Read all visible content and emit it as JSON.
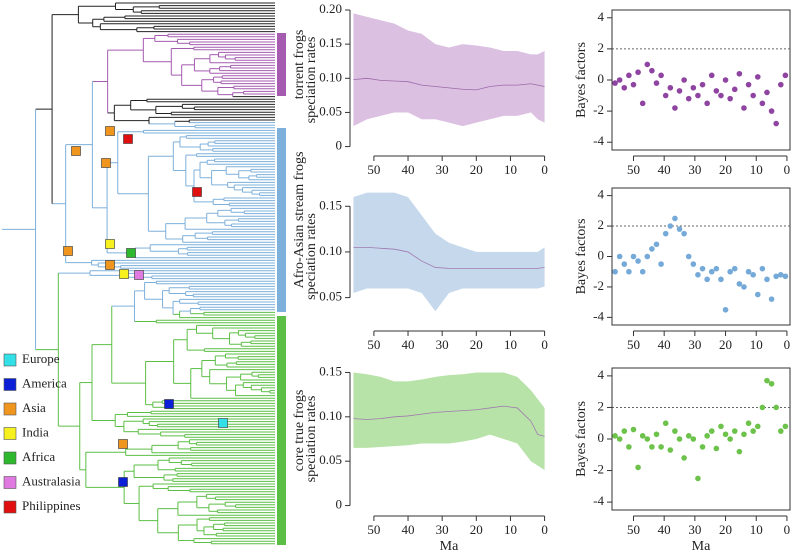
{
  "tree": {
    "clades": [
      {
        "label": "torrent frogs",
        "color": "#a45bb0"
      },
      {
        "label": "Afro-Asian stream frogs",
        "color": "#7eb0dc"
      },
      {
        "label": "core true frogs",
        "color": "#5cbf45"
      }
    ],
    "legend": [
      {
        "label": "Europe",
        "color": "#33e0e8"
      },
      {
        "label": "America",
        "color": "#0a1fd6"
      },
      {
        "label": "Asia",
        "color": "#f0951e"
      },
      {
        "label": "India",
        "color": "#f5f01e"
      },
      {
        "label": "Africa",
        "color": "#2db82d"
      },
      {
        "label": "Australasia",
        "color": "#e07ae0"
      },
      {
        "label": "Philippines",
        "color": "#e01010"
      }
    ]
  },
  "chart_data": [
    {
      "type": "band",
      "y_label": "speciation rates",
      "x": [
        56,
        52,
        48,
        44,
        40,
        36,
        32,
        28,
        24,
        20,
        16,
        12,
        8,
        4,
        2,
        0
      ],
      "upper": [
        0.195,
        0.19,
        0.185,
        0.18,
        0.17,
        0.165,
        0.15,
        0.145,
        0.15,
        0.148,
        0.145,
        0.14,
        0.14,
        0.135,
        0.135,
        0.14
      ],
      "lower": [
        0.03,
        0.04,
        0.045,
        0.05,
        0.05,
        0.04,
        0.04,
        0.035,
        0.03,
        0.035,
        0.04,
        0.045,
        0.045,
        0.05,
        0.04,
        0.035
      ],
      "values": [
        0.098,
        0.1,
        0.097,
        0.096,
        0.095,
        0.09,
        0.088,
        0.086,
        0.084,
        0.083,
        0.088,
        0.09,
        0.09,
        0.092,
        0.09,
        0.088
      ],
      "color": "#dcc0e2",
      "line_color": "#9b6aa8",
      "xlim": [
        57,
        -1
      ],
      "xticks": [
        50,
        40,
        30,
        20,
        10,
        0
      ],
      "ylim": [
        -0.005,
        0.2
      ],
      "yticks": [
        0,
        0.05,
        {
          "value": 0.1,
          "label": "0.10"
        },
        0.15,
        {
          "value": 0.2,
          "label": "0.20"
        }
      ]
    },
    {
      "type": "scatter",
      "y_label": "Bayes factors",
      "color": "#8e44a0",
      "threshold": 2,
      "xlim": [
        57,
        -1
      ],
      "xticks": [
        50,
        40,
        30,
        20,
        10,
        0
      ],
      "ylim": [
        -4.5,
        4.5
      ],
      "yticks": [
        -4,
        -2,
        0,
        2,
        4
      ],
      "x": [
        56,
        54.5,
        53,
        51.5,
        50,
        48.5,
        47,
        45.5,
        44,
        42.5,
        41,
        39.5,
        38,
        36.5,
        35,
        33.5,
        32,
        30.5,
        29,
        27.5,
        26,
        24.5,
        23,
        21.5,
        20,
        18.5,
        17,
        15.5,
        14,
        12.5,
        11,
        9.5,
        8,
        6.5,
        5,
        3.5,
        2,
        0.5
      ],
      "values": [
        -0.2,
        0,
        -0.5,
        0.3,
        -0.3,
        0.5,
        -1.5,
        1,
        0.6,
        -0.2,
        0.3,
        -1,
        -0.5,
        -1.8,
        -0.7,
        0,
        -1.2,
        -0.5,
        -1,
        -0.3,
        -1.5,
        0.3,
        -0.7,
        -1,
        0,
        -1.2,
        -0.6,
        0.4,
        -1.8,
        -0.3,
        -1,
        0.2,
        -1.5,
        -0.8,
        -2,
        -2.8,
        -0.3,
        0.3
      ]
    },
    {
      "type": "band",
      "y_label": "speciation rates",
      "x": [
        56,
        52,
        48,
        44,
        40,
        36,
        32,
        28,
        24,
        20,
        16,
        12,
        8,
        4,
        2,
        0
      ],
      "upper": [
        0.16,
        0.165,
        0.165,
        0.165,
        0.16,
        0.14,
        0.12,
        0.11,
        0.105,
        0.1,
        0.1,
        0.1,
        0.1,
        0.1,
        0.1,
        0.105
      ],
      "lower": [
        0.055,
        0.06,
        0.06,
        0.06,
        0.06,
        0.055,
        0.035,
        0.055,
        0.06,
        0.06,
        0.06,
        0.06,
        0.06,
        0.06,
        0.06,
        0.062
      ],
      "values": [
        0.105,
        0.105,
        0.104,
        0.103,
        0.1,
        0.09,
        0.083,
        0.082,
        0.082,
        0.082,
        0.082,
        0.082,
        0.082,
        0.082,
        0.082,
        0.083
      ],
      "color": "#c5d8ec",
      "line_color": "#a07ab0",
      "xlim": [
        57,
        -1
      ],
      "xticks": [
        50,
        40,
        30,
        20,
        10,
        0
      ],
      "ylim": [
        0.02,
        0.17
      ],
      "yticks": [
        0.05,
        {
          "value": 0.1,
          "label": "0.10"
        },
        0.15
      ]
    },
    {
      "type": "scatter",
      "y_label": "Bayes factors",
      "color": "#74a9d8",
      "threshold": 2,
      "xlim": [
        57,
        -1
      ],
      "xticks": [
        50,
        40,
        30,
        20,
        10,
        0
      ],
      "ylim": [
        -4.5,
        4.5
      ],
      "yticks": [
        -4,
        -2,
        0,
        2,
        4
      ],
      "x": [
        56,
        54.5,
        53,
        51.5,
        50,
        48.5,
        47,
        45.5,
        44,
        42.5,
        41,
        39.5,
        38,
        36.5,
        35,
        33.5,
        32,
        30.5,
        29,
        27.5,
        26,
        24.5,
        23,
        21.5,
        20,
        18.5,
        17,
        15.5,
        14,
        12.5,
        11,
        9.5,
        8,
        6.5,
        5,
        3.5,
        2,
        0.5
      ],
      "values": [
        -1,
        0,
        -0.5,
        -1,
        0,
        -0.3,
        -1,
        0,
        0.5,
        0.8,
        -0.5,
        1.5,
        2,
        2.5,
        1.8,
        1.5,
        0,
        -0.5,
        -1.2,
        -0.8,
        -1.5,
        -1,
        -0.8,
        -1.5,
        -3.5,
        -1,
        -0.8,
        -1.8,
        -2,
        -1,
        -1.2,
        -2.5,
        -0.8,
        -1.5,
        -2.8,
        -1.3,
        -1.2,
        -1.3
      ]
    },
    {
      "type": "band",
      "y_label": "speciation rates",
      "x_label": "Ma",
      "x": [
        56,
        52,
        48,
        44,
        40,
        36,
        32,
        28,
        24,
        20,
        16,
        12,
        8,
        4,
        2,
        0
      ],
      "upper": [
        0.15,
        0.148,
        0.145,
        0.14,
        0.14,
        0.142,
        0.145,
        0.147,
        0.148,
        0.15,
        0.15,
        0.15,
        0.145,
        0.13,
        0.12,
        0.11
      ],
      "lower": [
        0.065,
        0.065,
        0.066,
        0.067,
        0.068,
        0.07,
        0.07,
        0.07,
        0.072,
        0.075,
        0.08,
        0.075,
        0.07,
        0.05,
        0.045,
        0.04
      ],
      "values": [
        0.098,
        0.097,
        0.098,
        0.1,
        0.101,
        0.103,
        0.105,
        0.106,
        0.107,
        0.108,
        0.11,
        0.112,
        0.11,
        0.095,
        0.08,
        0.078
      ],
      "color": "#b8e3a8",
      "line_color": "#a07ab0",
      "xlim": [
        57,
        -1
      ],
      "xticks": [
        50,
        40,
        30,
        20,
        10,
        0
      ],
      "ylim": [
        -0.005,
        0.155
      ],
      "yticks": [
        0,
        0.05,
        {
          "value": 0.1,
          "label": "0.10"
        },
        0.15
      ]
    },
    {
      "type": "scatter",
      "y_label": "Bayes factors",
      "x_label": "Ma",
      "color": "#6cc24a",
      "threshold": 2,
      "xlim": [
        57,
        -1
      ],
      "xticks": [
        50,
        40,
        30,
        20,
        10,
        0
      ],
      "ylim": [
        -4.5,
        4.5
      ],
      "yticks": [
        -4,
        -2,
        0,
        2,
        4
      ],
      "x": [
        56,
        54.5,
        53,
        51.5,
        50,
        48.5,
        47,
        45.5,
        44,
        42.5,
        41,
        39.5,
        38,
        36.5,
        35,
        33.5,
        32,
        30.5,
        29,
        27.5,
        26,
        24.5,
        23,
        21.5,
        20,
        18.5,
        17,
        15.5,
        14,
        12.5,
        11,
        9.5,
        8,
        6.5,
        5,
        3.5,
        2,
        0.5
      ],
      "values": [
        0.2,
        0,
        0.5,
        -0.5,
        0.6,
        -1.8,
        0.2,
        0,
        -0.5,
        0.3,
        -0.5,
        1,
        -0.7,
        0.5,
        0,
        -1.2,
        0.2,
        0,
        -2.5,
        -0.5,
        0.2,
        0.5,
        -0.6,
        0.8,
        0.3,
        0,
        0.5,
        -0.8,
        0.3,
        1,
        0.5,
        0.8,
        2,
        3.7,
        3.5,
        2,
        0.5,
        0.8
      ]
    }
  ]
}
